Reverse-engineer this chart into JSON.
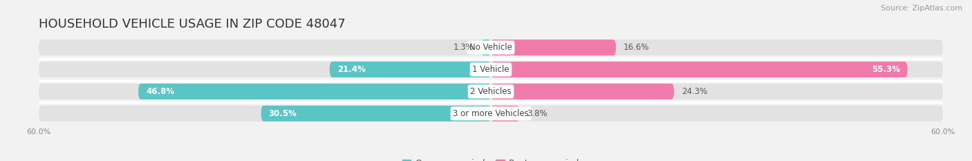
{
  "title": "HOUSEHOLD VEHICLE USAGE IN ZIP CODE 48047",
  "source": "Source: ZipAtlas.com",
  "categories": [
    "No Vehicle",
    "1 Vehicle",
    "2 Vehicles",
    "3 or more Vehicles"
  ],
  "owner_values": [
    1.3,
    21.4,
    46.8,
    30.5
  ],
  "renter_values": [
    16.6,
    55.3,
    24.3,
    3.8
  ],
  "owner_color": "#5bc5c5",
  "renter_color": "#f07aaa",
  "axis_max": 60.0,
  "bar_height": 0.72,
  "background_color": "#f2f2f2",
  "bar_background_color": "#e2e2e2",
  "title_fontsize": 13,
  "source_fontsize": 8,
  "value_fontsize": 8.5,
  "cat_fontsize": 8.5,
  "tick_fontsize": 8,
  "legend_fontsize": 9
}
